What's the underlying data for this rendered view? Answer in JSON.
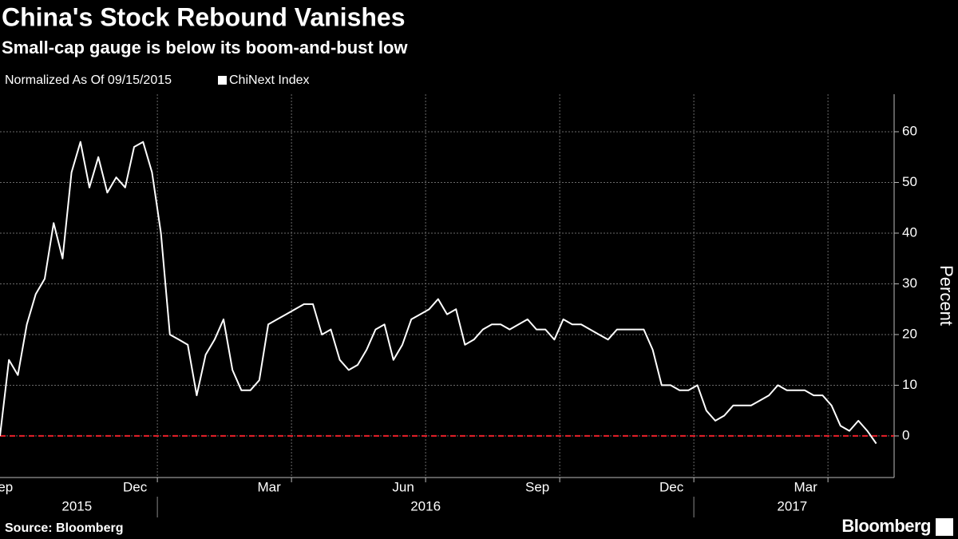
{
  "chart_data": {
    "type": "line",
    "title": "China's Stock Rebound Vanishes",
    "subtitle": "Small-cap gauge is below its boom-and-bust low",
    "note": "Normalized As Of 09/15/2015",
    "y_label": "Percent",
    "source": "Source: Bloomberg",
    "brand": "Bloomberg",
    "x": [
      0.48,
      0.68,
      0.88,
      1.08,
      1.28,
      1.48,
      1.68,
      1.88,
      2.08,
      2.28,
      2.48,
      2.68,
      2.88,
      3.08,
      3.28,
      3.48,
      3.68,
      3.88,
      4.08,
      4.28,
      4.48,
      4.68,
      4.88,
      5.08,
      5.28,
      5.48,
      5.68,
      5.88,
      6.08,
      6.28,
      6.48,
      6.68,
      6.88,
      7.08,
      7.28,
      7.48,
      7.68,
      7.88,
      8.08,
      8.28,
      8.48,
      8.68,
      8.88,
      9.08,
      9.28,
      9.48,
      9.68,
      9.88,
      10.08,
      10.28,
      10.48,
      10.68,
      10.88,
      11.08,
      11.28,
      11.48,
      11.68,
      11.88,
      12.08,
      12.28,
      12.48,
      12.68,
      12.88,
      13.08,
      13.28,
      13.48,
      13.68,
      13.88,
      14.08,
      14.28,
      14.48,
      14.68,
      14.88,
      15.08,
      15.28,
      15.48,
      15.68,
      15.88,
      16.08,
      16.28,
      16.48,
      16.68,
      16.88,
      17.08,
      17.28,
      17.48,
      17.68,
      17.88,
      18.08,
      18.28,
      18.48,
      18.68,
      18.88,
      19.08,
      19.28,
      19.48,
      19.68,
      19.88,
      20.08
    ],
    "series": [
      {
        "name": "ChiNext Index",
        "color": "#ffffff",
        "values": [
          0,
          15,
          12,
          22,
          28,
          31,
          42,
          35,
          52,
          58,
          49,
          55,
          48,
          51,
          49,
          57,
          58,
          52,
          40,
          20,
          19,
          18,
          8,
          16,
          19,
          23,
          13,
          9,
          9,
          11,
          22,
          23,
          24,
          25,
          26,
          26,
          20,
          21,
          15,
          13,
          14,
          17,
          21,
          22,
          15,
          18,
          23,
          24,
          25,
          27,
          24,
          25,
          18,
          19,
          21,
          22,
          22,
          21,
          22,
          23,
          21,
          21,
          19,
          23,
          22,
          22,
          21,
          20,
          19,
          21,
          21,
          21,
          21,
          17,
          10,
          10,
          9,
          9,
          10,
          5,
          3,
          4,
          6,
          6,
          6,
          7,
          8,
          10,
          9,
          9,
          9,
          8,
          8,
          6,
          2,
          1,
          3,
          1,
          -1.5
        ]
      }
    ],
    "xlim": [
      0.48,
      20.48
    ],
    "xticks": [
      {
        "value": 0.5,
        "label": "Sep"
      },
      {
        "value": 3.5,
        "label": "Dec"
      },
      {
        "value": 6.5,
        "label": "Mar"
      },
      {
        "value": 9.5,
        "label": "Jun"
      },
      {
        "value": 12.5,
        "label": "Sep"
      },
      {
        "value": 15.5,
        "label": "Dec"
      },
      {
        "value": 18.5,
        "label": "Mar"
      }
    ],
    "xgrid": [
      4,
      7,
      10,
      13,
      16,
      19
    ],
    "year_ticks": [
      {
        "value": 2.2,
        "label": "2015"
      },
      {
        "value": 10,
        "label": "2016"
      },
      {
        "value": 18.2,
        "label": "2017"
      }
    ],
    "year_breaks": [
      4,
      16
    ],
    "ylim": [
      -8.2,
      67.4
    ],
    "yticks": [
      0,
      10,
      20,
      30,
      40,
      50,
      60
    ],
    "grid": true,
    "reference_line": {
      "value": 0,
      "color": "#e8202a"
    }
  }
}
